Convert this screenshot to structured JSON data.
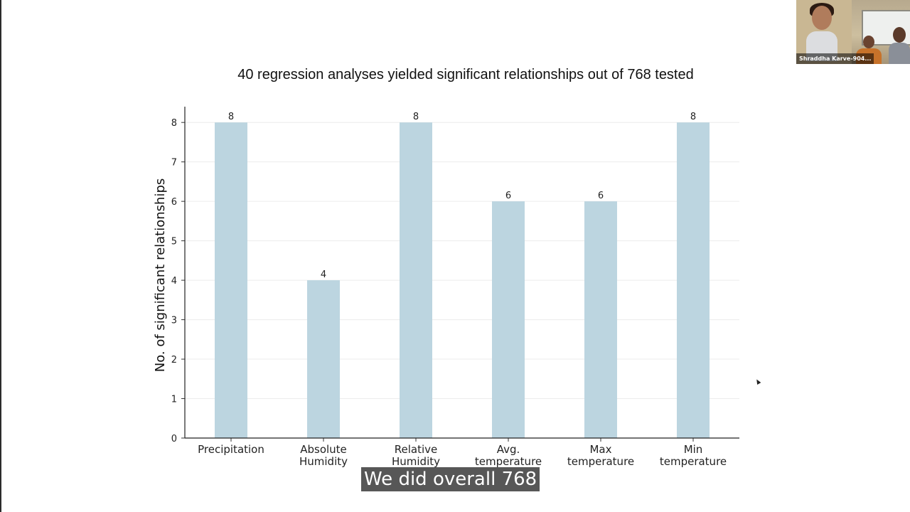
{
  "slide": {
    "title": "40 regression analyses yielded significant relationships out of 768 tested"
  },
  "chart_data": {
    "type": "bar",
    "title": "",
    "xlabel": "",
    "ylabel": "No. of significant relationships",
    "categories": [
      [
        "Precipitation"
      ],
      [
        "Absolute",
        "Humidity"
      ],
      [
        "Relative",
        "Humidity"
      ],
      [
        "Avg.",
        "temperature"
      ],
      [
        "Max",
        "temperature"
      ],
      [
        "Min",
        "temperature"
      ]
    ],
    "values": [
      8,
      4,
      8,
      6,
      6,
      8
    ],
    "data_labels": [
      "8",
      "4",
      "8",
      "6",
      "6",
      "8"
    ],
    "ylim": [
      0,
      8.4
    ],
    "yticks": [
      0,
      1,
      2,
      3,
      4,
      5,
      6,
      7,
      8
    ],
    "grid": "horizontal",
    "bar_color": "#bcd5e0",
    "legend": "none"
  },
  "video": {
    "participant_name": "Shraddha Karve-904..."
  },
  "caption": {
    "text": "We did overall 768"
  }
}
